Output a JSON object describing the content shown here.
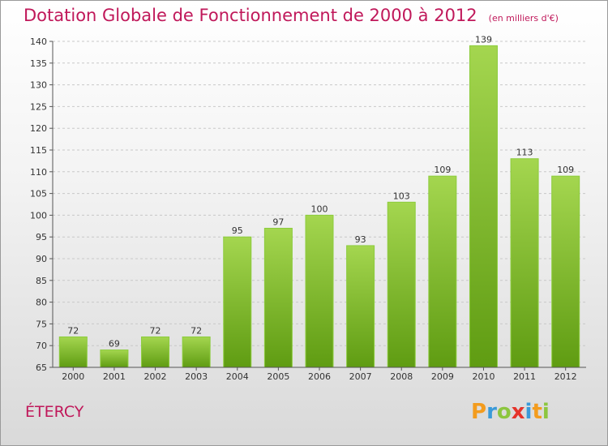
{
  "title": "Dotation Globale de Fonctionnement de 2000 à 2012",
  "unit": "(en milliers d'€)",
  "commune": "ÉTERCY",
  "logo_text": "Proxiti",
  "colors": {
    "title": "#c0185a",
    "bar_light": "#9fd24b",
    "bar_dark": "#5f9c12",
    "grid": "#c8c8c8"
  },
  "chart_data": {
    "type": "bar",
    "title": "Dotation Globale de Fonctionnement de 2000 à 2012",
    "categories": [
      "2000",
      "2001",
      "2002",
      "2003",
      "2004",
      "2005",
      "2006",
      "2007",
      "2008",
      "2009",
      "2010",
      "2011",
      "2012"
    ],
    "values": [
      72,
      69,
      72,
      72,
      95,
      97,
      100,
      93,
      103,
      109,
      139,
      113,
      109
    ],
    "ylim": [
      65,
      140
    ],
    "yticks": [
      65,
      70,
      75,
      80,
      85,
      90,
      95,
      100,
      105,
      110,
      115,
      120,
      125,
      130,
      135,
      140
    ],
    "grid": true,
    "xlabel": "",
    "ylabel": ""
  }
}
